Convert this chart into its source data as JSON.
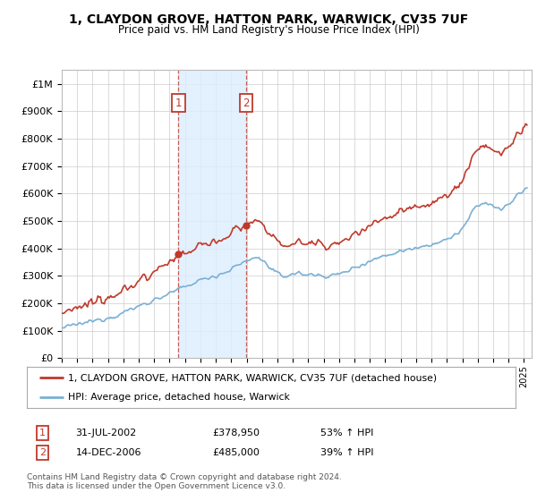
{
  "title": "1, CLAYDON GROVE, HATTON PARK, WARWICK, CV35 7UF",
  "subtitle": "Price paid vs. HM Land Registry's House Price Index (HPI)",
  "legend_line1": "1, CLAYDON GROVE, HATTON PARK, WARWICK, CV35 7UF (detached house)",
  "legend_line2": "HPI: Average price, detached house, Warwick",
  "transaction1_date": "31-JUL-2002",
  "transaction1_price": "£378,950",
  "transaction1_hpi": "53% ↑ HPI",
  "transaction1_year": 2002.58,
  "transaction1_value": 378950,
  "transaction2_date": "14-DEC-2006",
  "transaction2_price": "£485,000",
  "transaction2_hpi": "39% ↑ HPI",
  "transaction2_year": 2006.96,
  "transaction2_value": 485000,
  "hpi_color": "#7ab0d4",
  "price_color": "#c0392b",
  "annotation_box_color": "#c0392b",
  "shading_color": "#ddeeff",
  "footer_text": "Contains HM Land Registry data © Crown copyright and database right 2024.\nThis data is licensed under the Open Government Licence v3.0.",
  "ylim_min": 0,
  "ylim_max": 1050000,
  "xmin": 1995.0,
  "xmax": 2025.5,
  "background_color": "#ffffff",
  "grid_color": "#cccccc"
}
